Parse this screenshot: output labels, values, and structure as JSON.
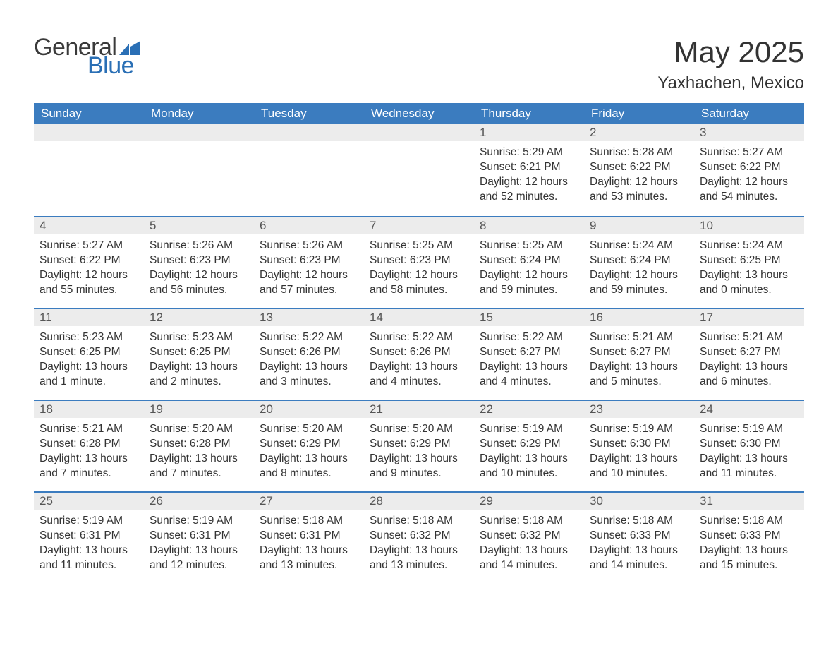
{
  "brand": {
    "word1": "General",
    "word2": "Blue",
    "flag_color": "#2a6fb5"
  },
  "title": "May 2025",
  "location": "Yaxhachen, Mexico",
  "colors": {
    "header_bg": "#3b7cbf",
    "header_text": "#ffffff",
    "daynum_bg": "#ececec",
    "rule": "#3b7cbf",
    "text": "#333333"
  },
  "dow": [
    "Sunday",
    "Monday",
    "Tuesday",
    "Wednesday",
    "Thursday",
    "Friday",
    "Saturday"
  ],
  "weeks": [
    [
      null,
      null,
      null,
      null,
      {
        "n": "1",
        "sr": "5:29 AM",
        "ss": "6:21 PM",
        "dl": "12 hours and 52 minutes."
      },
      {
        "n": "2",
        "sr": "5:28 AM",
        "ss": "6:22 PM",
        "dl": "12 hours and 53 minutes."
      },
      {
        "n": "3",
        "sr": "5:27 AM",
        "ss": "6:22 PM",
        "dl": "12 hours and 54 minutes."
      }
    ],
    [
      {
        "n": "4",
        "sr": "5:27 AM",
        "ss": "6:22 PM",
        "dl": "12 hours and 55 minutes."
      },
      {
        "n": "5",
        "sr": "5:26 AM",
        "ss": "6:23 PM",
        "dl": "12 hours and 56 minutes."
      },
      {
        "n": "6",
        "sr": "5:26 AM",
        "ss": "6:23 PM",
        "dl": "12 hours and 57 minutes."
      },
      {
        "n": "7",
        "sr": "5:25 AM",
        "ss": "6:23 PM",
        "dl": "12 hours and 58 minutes."
      },
      {
        "n": "8",
        "sr": "5:25 AM",
        "ss": "6:24 PM",
        "dl": "12 hours and 59 minutes."
      },
      {
        "n": "9",
        "sr": "5:24 AM",
        "ss": "6:24 PM",
        "dl": "12 hours and 59 minutes."
      },
      {
        "n": "10",
        "sr": "5:24 AM",
        "ss": "6:25 PM",
        "dl": "13 hours and 0 minutes."
      }
    ],
    [
      {
        "n": "11",
        "sr": "5:23 AM",
        "ss": "6:25 PM",
        "dl": "13 hours and 1 minute."
      },
      {
        "n": "12",
        "sr": "5:23 AM",
        "ss": "6:25 PM",
        "dl": "13 hours and 2 minutes."
      },
      {
        "n": "13",
        "sr": "5:22 AM",
        "ss": "6:26 PM",
        "dl": "13 hours and 3 minutes."
      },
      {
        "n": "14",
        "sr": "5:22 AM",
        "ss": "6:26 PM",
        "dl": "13 hours and 4 minutes."
      },
      {
        "n": "15",
        "sr": "5:22 AM",
        "ss": "6:27 PM",
        "dl": "13 hours and 4 minutes."
      },
      {
        "n": "16",
        "sr": "5:21 AM",
        "ss": "6:27 PM",
        "dl": "13 hours and 5 minutes."
      },
      {
        "n": "17",
        "sr": "5:21 AM",
        "ss": "6:27 PM",
        "dl": "13 hours and 6 minutes."
      }
    ],
    [
      {
        "n": "18",
        "sr": "5:21 AM",
        "ss": "6:28 PM",
        "dl": "13 hours and 7 minutes."
      },
      {
        "n": "19",
        "sr": "5:20 AM",
        "ss": "6:28 PM",
        "dl": "13 hours and 7 minutes."
      },
      {
        "n": "20",
        "sr": "5:20 AM",
        "ss": "6:29 PM",
        "dl": "13 hours and 8 minutes."
      },
      {
        "n": "21",
        "sr": "5:20 AM",
        "ss": "6:29 PM",
        "dl": "13 hours and 9 minutes."
      },
      {
        "n": "22",
        "sr": "5:19 AM",
        "ss": "6:29 PM",
        "dl": "13 hours and 10 minutes."
      },
      {
        "n": "23",
        "sr": "5:19 AM",
        "ss": "6:30 PM",
        "dl": "13 hours and 10 minutes."
      },
      {
        "n": "24",
        "sr": "5:19 AM",
        "ss": "6:30 PM",
        "dl": "13 hours and 11 minutes."
      }
    ],
    [
      {
        "n": "25",
        "sr": "5:19 AM",
        "ss": "6:31 PM",
        "dl": "13 hours and 11 minutes."
      },
      {
        "n": "26",
        "sr": "5:19 AM",
        "ss": "6:31 PM",
        "dl": "13 hours and 12 minutes."
      },
      {
        "n": "27",
        "sr": "5:18 AM",
        "ss": "6:31 PM",
        "dl": "13 hours and 13 minutes."
      },
      {
        "n": "28",
        "sr": "5:18 AM",
        "ss": "6:32 PM",
        "dl": "13 hours and 13 minutes."
      },
      {
        "n": "29",
        "sr": "5:18 AM",
        "ss": "6:32 PM",
        "dl": "13 hours and 14 minutes."
      },
      {
        "n": "30",
        "sr": "5:18 AM",
        "ss": "6:33 PM",
        "dl": "13 hours and 14 minutes."
      },
      {
        "n": "31",
        "sr": "5:18 AM",
        "ss": "6:33 PM",
        "dl": "13 hours and 15 minutes."
      }
    ]
  ],
  "labels": {
    "sunrise": "Sunrise: ",
    "sunset": "Sunset: ",
    "daylight": "Daylight: "
  }
}
